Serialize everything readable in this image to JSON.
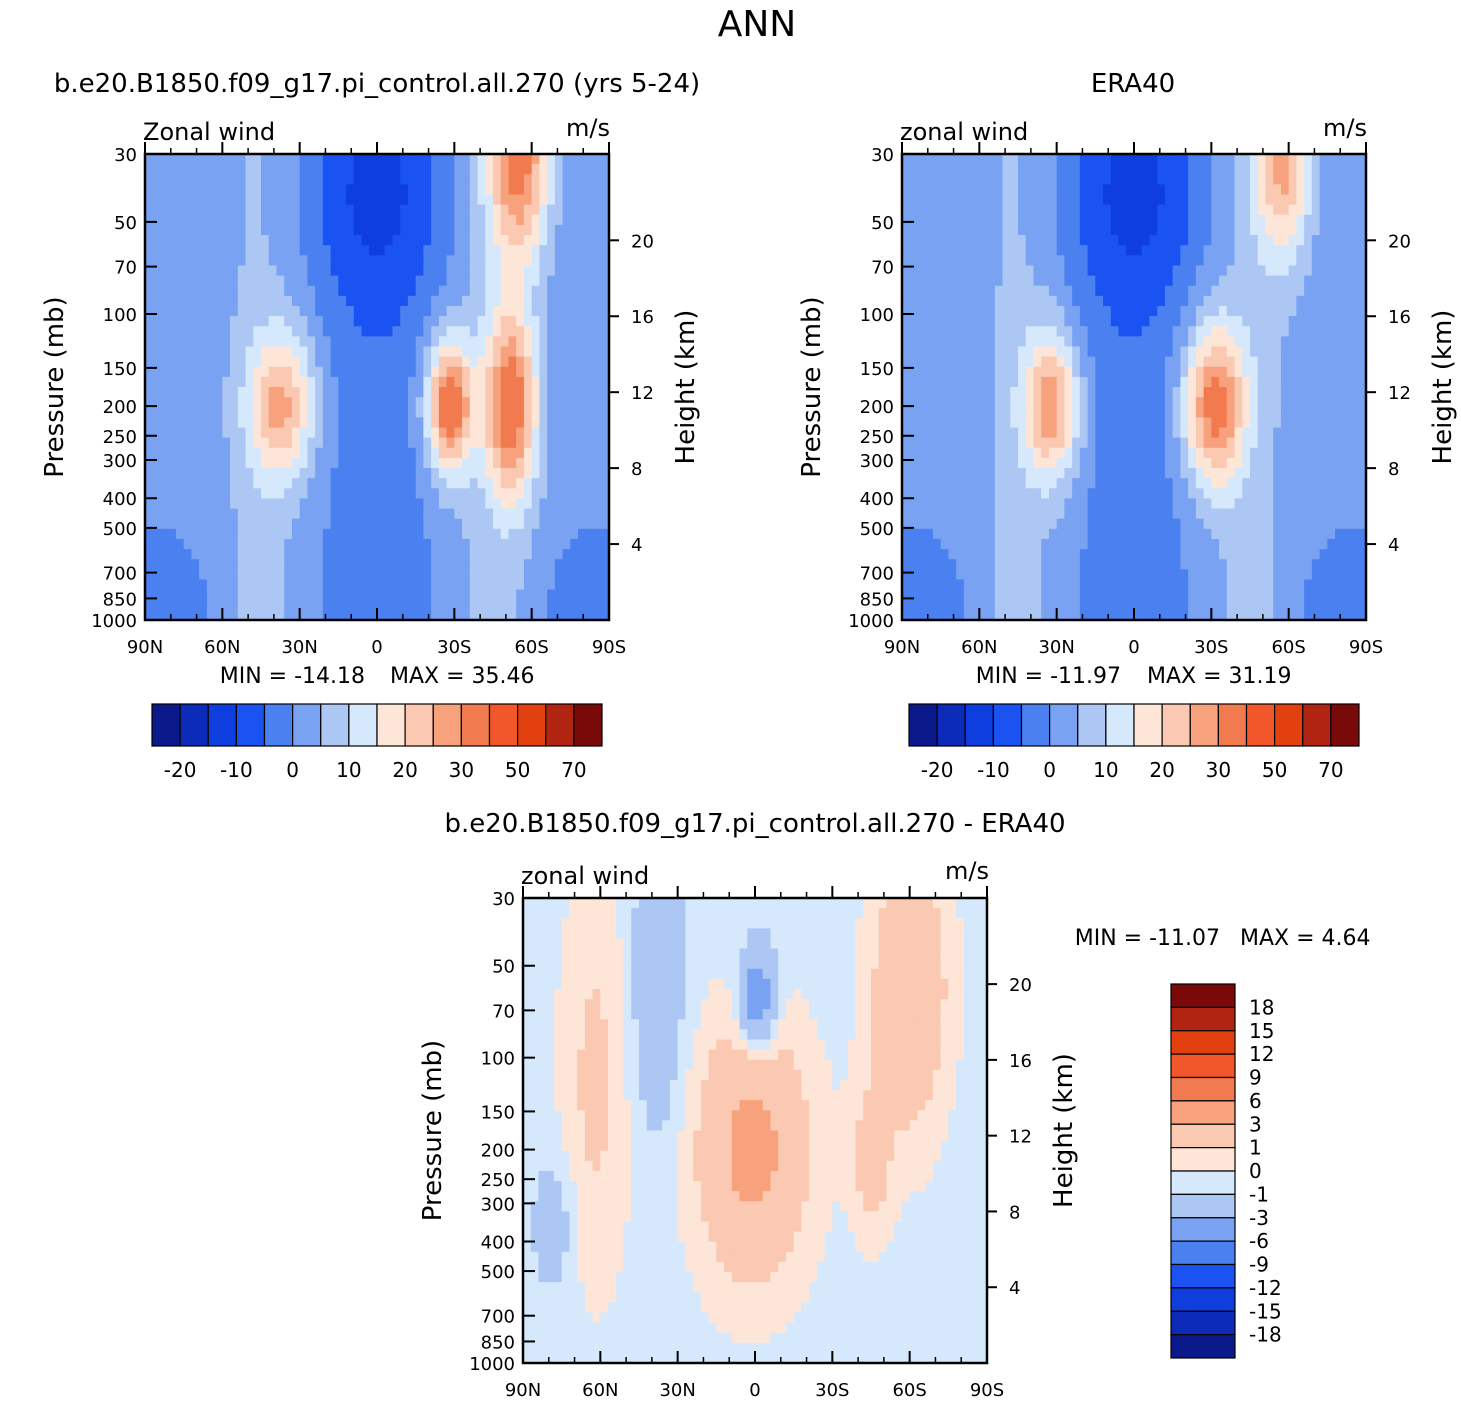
{
  "figure": {
    "title": "ANN",
    "zonal_label": "Zonal wind",
    "zonal_label_lower": "zonal wind",
    "units": "m/s",
    "pressure_label": "Pressure (mb)",
    "height_label": "Height (km)"
  },
  "chart_data": [
    {
      "type": "heatmap",
      "panel": "model",
      "title": "b.e20.B1850.f09_g17.pi_control.all.270 (yrs 5-24)",
      "left_label": "Zonal wind",
      "units": "m/s",
      "ylabel": "Pressure (mb)",
      "y2label": "Height (km)",
      "xlim": [
        90,
        -90
      ],
      "x_ticklabels": [
        "90N",
        "60N",
        "30N",
        "0",
        "30S",
        "60S",
        "90S"
      ],
      "y_ticks": [
        30,
        50,
        70,
        100,
        150,
        200,
        250,
        300,
        400,
        500,
        700,
        850,
        1000
      ],
      "y2_ticks": [
        4,
        8,
        12,
        16,
        20
      ],
      "min_label": "MIN = -14.18",
      "max_label": "MAX = 35.46",
      "min": -14.18,
      "max": 35.46,
      "colorbar_ticks": [
        "-20",
        "-10",
        "0",
        "10",
        "20",
        "30",
        "50",
        "70"
      ],
      "levels": [
        -20,
        -15,
        -10,
        -5,
        0,
        5,
        10,
        15,
        20,
        25,
        30,
        40,
        50,
        60,
        70
      ],
      "jets": [
        {
          "lat": 37,
          "p": 200,
          "peak": 22,
          "wx": 13,
          "wp": 0.55
        },
        {
          "lat": -28,
          "p": 200,
          "peak": 33,
          "wx": 9,
          "wp": 0.5
        },
        {
          "lat": -52,
          "p": 200,
          "peak": 31,
          "wx": 10,
          "wp": 0.7
        },
        {
          "lat": -55,
          "p": 30,
          "peak": 30,
          "wx": 12,
          "wp": 0.8
        }
      ]
    },
    {
      "type": "heatmap",
      "panel": "obs",
      "title": "ERA40",
      "left_label": "zonal wind",
      "units": "m/s",
      "ylabel": "Pressure (mb)",
      "y2label": "Height (km)",
      "xlim": [
        90,
        -90
      ],
      "x_ticklabels": [
        "90N",
        "60N",
        "30N",
        "0",
        "30S",
        "60S",
        "90S"
      ],
      "y_ticks": [
        30,
        50,
        70,
        100,
        150,
        200,
        250,
        300,
        400,
        500,
        700,
        850,
        1000
      ],
      "y2_ticks": [
        4,
        8,
        12,
        16,
        20
      ],
      "min_label": "MIN = -11.97",
      "max_label": "MAX = 31.19",
      "min": -11.97,
      "max": 31.19,
      "colorbar_ticks": [
        "-20",
        "-10",
        "0",
        "10",
        "20",
        "30",
        "50",
        "70"
      ],
      "levels": [
        -20,
        -15,
        -10,
        -5,
        0,
        5,
        10,
        15,
        20,
        25,
        30,
        40,
        50,
        60,
        70
      ],
      "jets": [
        {
          "lat": 32,
          "p": 200,
          "peak": 25,
          "wx": 11,
          "wp": 0.55
        },
        {
          "lat": -31,
          "p": 200,
          "peak": 30,
          "wx": 12,
          "wp": 0.6
        },
        {
          "lat": -58,
          "p": 30,
          "peak": 24,
          "wx": 11,
          "wp": 0.8
        }
      ]
    },
    {
      "type": "heatmap",
      "panel": "difference",
      "title": "b.e20.B1850.f09_g17.pi_control.all.270 - ERA40",
      "left_label": "zonal wind",
      "units": "m/s",
      "ylabel": "Pressure (mb)",
      "y2label": "Height (km)",
      "xlim": [
        90,
        -90
      ],
      "x_ticklabels": [
        "90N",
        "60N",
        "30N",
        "0",
        "30S",
        "60S",
        "90S"
      ],
      "y_ticks": [
        30,
        50,
        70,
        100,
        150,
        200,
        250,
        300,
        400,
        500,
        700,
        850,
        1000
      ],
      "y2_ticks": [
        4,
        8,
        12,
        16,
        20
      ],
      "min_label": "MIN = -11.07",
      "max_label": "MAX = 4.64",
      "min": -11.07,
      "max": 4.64,
      "colorbar_ticks": [
        "18",
        "15",
        "12",
        "9",
        "6",
        "3",
        "1",
        "0",
        "-1",
        "-3",
        "-6",
        "-9",
        "-12",
        "-15",
        "-18"
      ],
      "levels": [
        -18,
        -15,
        -12,
        -9,
        -6,
        -3,
        -1,
        0,
        1,
        3,
        6,
        9,
        12,
        15,
        18
      ],
      "features": [
        {
          "lat": 62,
          "p": 120,
          "amp": 1.8,
          "wx": 14,
          "wp": 1.6
        },
        {
          "lat": 38,
          "p": 60,
          "amp": -2.2,
          "wx": 10,
          "wp": 1.1
        },
        {
          "lat": 1,
          "p": 200,
          "amp": 4.2,
          "wx": 22,
          "wp": 1.0
        },
        {
          "lat": -1,
          "p": 65,
          "amp": -5.0,
          "wx": 7,
          "wp": 0.4
        },
        {
          "lat": -60,
          "p": 60,
          "amp": 3.4,
          "wx": 15,
          "wp": 1.1
        },
        {
          "lat": -45,
          "p": 220,
          "amp": 2.0,
          "wx": 8,
          "wp": 0.6
        },
        {
          "lat": 78,
          "p": 350,
          "amp": -1.6,
          "wx": 8,
          "wp": 0.5
        }
      ]
    }
  ]
}
